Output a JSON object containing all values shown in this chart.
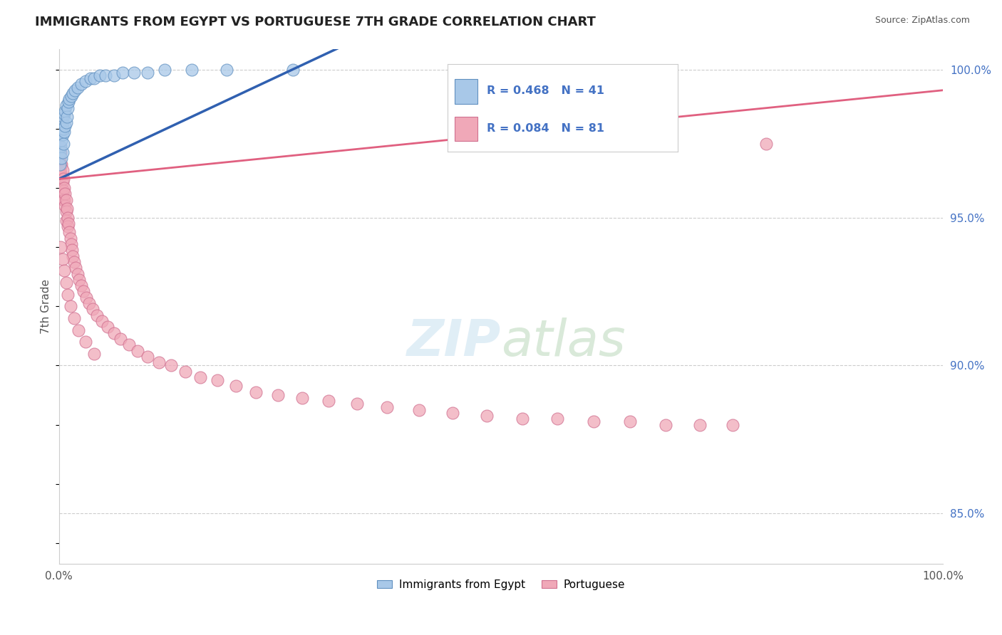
{
  "title": "IMMIGRANTS FROM EGYPT VS PORTUGUESE 7TH GRADE CORRELATION CHART",
  "source": "Source: ZipAtlas.com",
  "ylabel": "7th Grade",
  "xlim": [
    0.0,
    1.0
  ],
  "ylim": [
    0.833,
    1.007
  ],
  "yticks": [
    0.85,
    0.9,
    0.95,
    1.0
  ],
  "ytick_labels": [
    "85.0%",
    "90.0%",
    "95.0%",
    "100.0%"
  ],
  "r_egypt": 0.468,
  "n_egypt": 41,
  "r_portuguese": 0.084,
  "n_portuguese": 81,
  "blue_line_color": "#3060b0",
  "pink_line_color": "#e06080",
  "blue_scatter_face": "#a8c8e8",
  "blue_scatter_edge": "#6090c0",
  "pink_scatter_face": "#f0a8b8",
  "pink_scatter_edge": "#d07090",
  "egypt_x": [
    0.001,
    0.001,
    0.002,
    0.002,
    0.003,
    0.003,
    0.003,
    0.004,
    0.004,
    0.004,
    0.005,
    0.005,
    0.005,
    0.006,
    0.006,
    0.007,
    0.007,
    0.008,
    0.008,
    0.009,
    0.01,
    0.011,
    0.012,
    0.014,
    0.016,
    0.018,
    0.021,
    0.025,
    0.03,
    0.036,
    0.04,
    0.046,
    0.053,
    0.062,
    0.072,
    0.085,
    0.1,
    0.12,
    0.15,
    0.19,
    0.265
  ],
  "egypt_y": [
    0.968,
    0.972,
    0.978,
    0.974,
    0.97,
    0.976,
    0.98,
    0.972,
    0.978,
    0.982,
    0.975,
    0.98,
    0.984,
    0.979,
    0.985,
    0.981,
    0.986,
    0.982,
    0.988,
    0.984,
    0.987,
    0.989,
    0.99,
    0.991,
    0.992,
    0.993,
    0.994,
    0.995,
    0.996,
    0.997,
    0.997,
    0.998,
    0.998,
    0.998,
    0.999,
    0.999,
    0.999,
    1.0,
    1.0,
    1.0,
    1.0
  ],
  "portuguese_x": [
    0.001,
    0.001,
    0.001,
    0.002,
    0.002,
    0.002,
    0.003,
    0.003,
    0.003,
    0.004,
    0.004,
    0.004,
    0.005,
    0.005,
    0.005,
    0.006,
    0.006,
    0.007,
    0.007,
    0.008,
    0.008,
    0.008,
    0.009,
    0.01,
    0.01,
    0.011,
    0.012,
    0.013,
    0.014,
    0.015,
    0.016,
    0.017,
    0.019,
    0.021,
    0.023,
    0.025,
    0.028,
    0.031,
    0.034,
    0.038,
    0.043,
    0.049,
    0.055,
    0.062,
    0.07,
    0.079,
    0.089,
    0.1,
    0.113,
    0.127,
    0.143,
    0.16,
    0.179,
    0.2,
    0.223,
    0.248,
    0.275,
    0.305,
    0.337,
    0.371,
    0.407,
    0.445,
    0.484,
    0.524,
    0.564,
    0.605,
    0.646,
    0.686,
    0.725,
    0.762,
    0.002,
    0.004,
    0.006,
    0.008,
    0.01,
    0.013,
    0.017,
    0.022,
    0.03,
    0.04,
    0.8
  ],
  "portuguese_y": [
    0.974,
    0.97,
    0.966,
    0.972,
    0.968,
    0.965,
    0.968,
    0.964,
    0.96,
    0.966,
    0.962,
    0.958,
    0.963,
    0.959,
    0.956,
    0.96,
    0.956,
    0.958,
    0.954,
    0.956,
    0.952,
    0.949,
    0.953,
    0.95,
    0.947,
    0.948,
    0.945,
    0.943,
    0.941,
    0.939,
    0.937,
    0.935,
    0.933,
    0.931,
    0.929,
    0.927,
    0.925,
    0.923,
    0.921,
    0.919,
    0.917,
    0.915,
    0.913,
    0.911,
    0.909,
    0.907,
    0.905,
    0.903,
    0.901,
    0.9,
    0.898,
    0.896,
    0.895,
    0.893,
    0.891,
    0.89,
    0.889,
    0.888,
    0.887,
    0.886,
    0.885,
    0.884,
    0.883,
    0.882,
    0.882,
    0.881,
    0.881,
    0.88,
    0.88,
    0.88,
    0.94,
    0.936,
    0.932,
    0.928,
    0.924,
    0.92,
    0.916,
    0.912,
    0.908,
    0.904,
    0.975
  ]
}
